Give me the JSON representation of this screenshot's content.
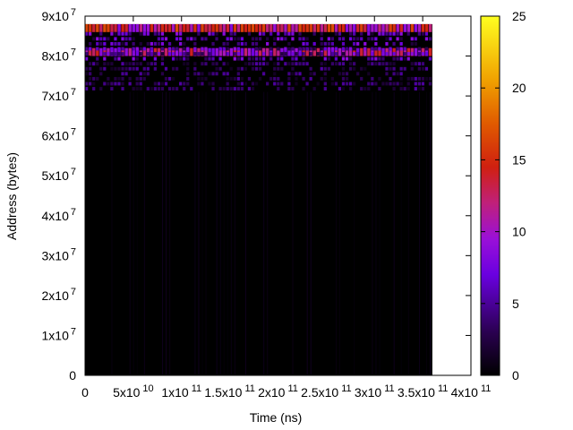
{
  "chart_data": {
    "type": "heatmap",
    "title": "",
    "xlabel": "Time (ns)",
    "ylabel": "Address (bytes)",
    "xlim": [
      0,
      400000000000
    ],
    "ylim": [
      0,
      90000000
    ],
    "x_data_extent": [
      0,
      360000000000
    ],
    "y_data_extent": [
      0,
      88000000
    ],
    "x_ticks": [
      {
        "value": 0,
        "mantissa": "0",
        "exp": ""
      },
      {
        "value": 50000000000,
        "mantissa": "5x10",
        "exp": "10"
      },
      {
        "value": 100000000000,
        "mantissa": "1x10",
        "exp": "11"
      },
      {
        "value": 150000000000,
        "mantissa": "1.5x10",
        "exp": "11"
      },
      {
        "value": 200000000000,
        "mantissa": "2x10",
        "exp": "11"
      },
      {
        "value": 250000000000,
        "mantissa": "2.5x10",
        "exp": "11"
      },
      {
        "value": 300000000000,
        "mantissa": "3x10",
        "exp": "11"
      },
      {
        "value": 350000000000,
        "mantissa": "3.5x10",
        "exp": "11"
      },
      {
        "value": 400000000000,
        "mantissa": "4x10",
        "exp": "11"
      }
    ],
    "y_ticks": [
      {
        "value": 0,
        "mantissa": "0",
        "exp": ""
      },
      {
        "value": 10000000,
        "mantissa": "1x10",
        "exp": "7"
      },
      {
        "value": 20000000,
        "mantissa": "2x10",
        "exp": "7"
      },
      {
        "value": 30000000,
        "mantissa": "3x10",
        "exp": "7"
      },
      {
        "value": 40000000,
        "mantissa": "4x10",
        "exp": "7"
      },
      {
        "value": 50000000,
        "mantissa": "5x10",
        "exp": "7"
      },
      {
        "value": 60000000,
        "mantissa": "6x10",
        "exp": "7"
      },
      {
        "value": 70000000,
        "mantissa": "7x10",
        "exp": "7"
      },
      {
        "value": 80000000,
        "mantissa": "8x10",
        "exp": "7"
      },
      {
        "value": 90000000,
        "mantissa": "9x10",
        "exp": "7"
      }
    ],
    "colorbar": {
      "range": [
        0,
        25
      ],
      "ticks": [
        0,
        5,
        10,
        15,
        20,
        25
      ],
      "palette": "gnuplot (black-purple-red-orange-yellow)"
    },
    "grid": false,
    "legend": "none",
    "description_bands": [
      {
        "y_range": [
          86000000,
          88000000
        ],
        "intensity": 14
      },
      {
        "y_range": [
          80000000,
          82000000
        ],
        "intensity": 12
      },
      {
        "y_range": [
          71000000,
          86000000
        ],
        "intensity": 6
      },
      {
        "y_range": [
          0,
          71000000
        ],
        "intensity": 0.5
      }
    ]
  }
}
